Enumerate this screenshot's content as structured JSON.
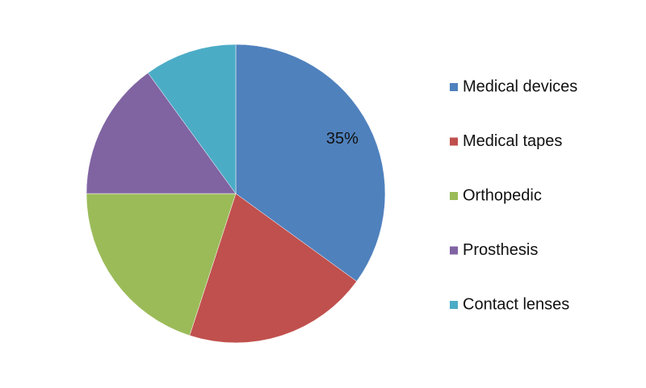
{
  "chart_data": {
    "type": "pie",
    "categories": [
      "Medical devices",
      "Medical tapes",
      "Orthopedic",
      "Prosthesis",
      "Contact lenses"
    ],
    "values": [
      35,
      20,
      20,
      15,
      10
    ],
    "value_labels": [
      "35%",
      null,
      null,
      null,
      null
    ],
    "colors": [
      "#4f81bd",
      "#c0504d",
      "#9bbb59",
      "#8064a2",
      "#4bacc6"
    ],
    "legend": "right"
  }
}
